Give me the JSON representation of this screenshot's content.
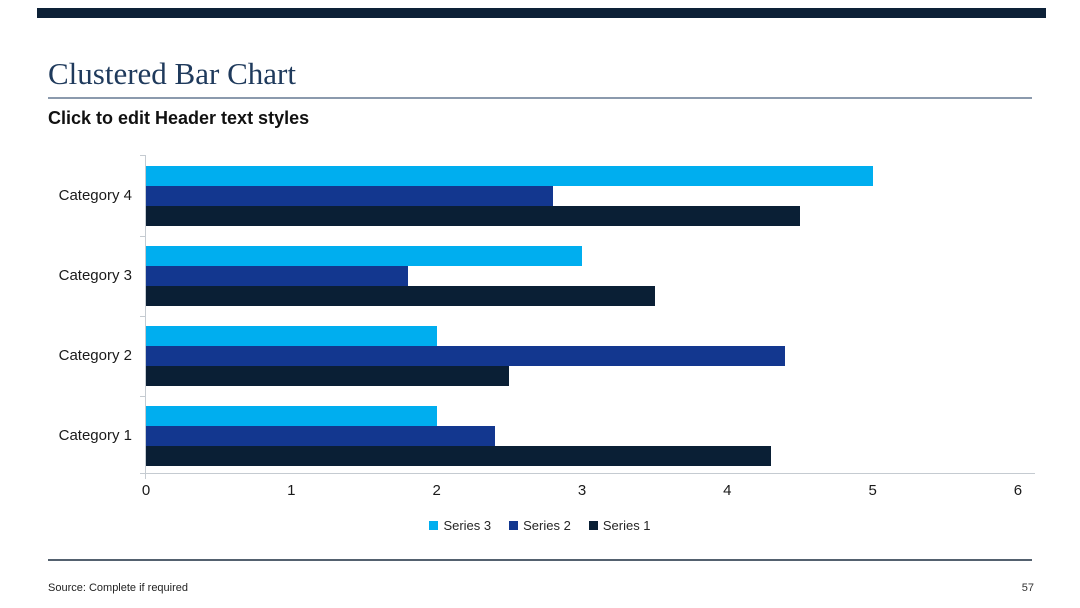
{
  "slide": {
    "title": "Clustered Bar Chart",
    "subtitle": "Click to edit Header text styles",
    "accent_bar_color": "#0D2137",
    "footer": {
      "source": "Source: Complete if required",
      "page_number": "57"
    }
  },
  "chart_data": {
    "type": "bar",
    "orientation": "horizontal",
    "title": "",
    "categories": [
      "Category 1",
      "Category 2",
      "Category 3",
      "Category 4"
    ],
    "series": [
      {
        "name": "Series 1",
        "color": "#0A1F35",
        "values": [
          4.3,
          2.5,
          3.5,
          4.5
        ]
      },
      {
        "name": "Series 2",
        "color": "#13378F",
        "values": [
          2.4,
          4.4,
          1.8,
          2.8
        ]
      },
      {
        "name": "Series 3",
        "color": "#00AEEF",
        "values": [
          2.0,
          2.0,
          3.0,
          5.0
        ]
      }
    ],
    "x_axis": {
      "min": 0,
      "max": 6,
      "ticks": [
        0,
        1,
        2,
        3,
        4,
        5,
        6
      ]
    },
    "y_axis_order_top_to_bottom": [
      "Category 4",
      "Category 3",
      "Category 2",
      "Category 1"
    ],
    "cluster_order_top_to_bottom": [
      "Series 3",
      "Series 2",
      "Series 1"
    ],
    "legend": {
      "position": "bottom",
      "order": [
        "Series 3",
        "Series 2",
        "Series 1"
      ]
    },
    "grid": false
  }
}
